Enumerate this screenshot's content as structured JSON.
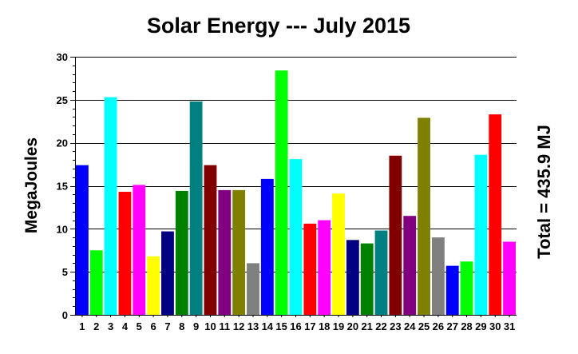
{
  "chart_data": {
    "type": "bar",
    "title": "Solar Energy --- July 2015",
    "xlabel": "",
    "ylabel": "MegaJoules",
    "annotation": "Total = 435.9 MJ",
    "ylim": [
      0,
      30
    ],
    "yticks": [
      0,
      5,
      10,
      15,
      20,
      25,
      30
    ],
    "grid": true,
    "categories": [
      "1",
      "2",
      "3",
      "4",
      "5",
      "6",
      "7",
      "8",
      "9",
      "10",
      "11",
      "12",
      "13",
      "14",
      "15",
      "16",
      "17",
      "18",
      "19",
      "20",
      "21",
      "22",
      "23",
      "24",
      "25",
      "26",
      "27",
      "28",
      "29",
      "30",
      "31"
    ],
    "values": [
      17.4,
      7.5,
      25.3,
      14.3,
      15.1,
      6.8,
      9.7,
      14.4,
      24.8,
      17.4,
      14.5,
      14.5,
      6.0,
      15.8,
      28.4,
      18.1,
      10.6,
      11.0,
      14.1,
      8.7,
      8.3,
      9.8,
      18.5,
      11.5,
      22.9,
      9.0,
      5.7,
      6.2,
      18.6,
      23.3,
      8.5
    ],
    "colors": [
      "#0000ff",
      "#00ff00",
      "#00ffff",
      "#ff0000",
      "#ff00ff",
      "#ffff00",
      "#000080",
      "#008000",
      "#008080",
      "#800000",
      "#800080",
      "#808000",
      "#808080",
      "#0000ff",
      "#00ff00",
      "#00ffff",
      "#ff0000",
      "#ff00ff",
      "#ffff00",
      "#000080",
      "#008000",
      "#008080",
      "#800000",
      "#800080",
      "#808000",
      "#808080",
      "#0000ff",
      "#00ff00",
      "#00ffff",
      "#ff0000",
      "#ff00ff"
    ]
  }
}
